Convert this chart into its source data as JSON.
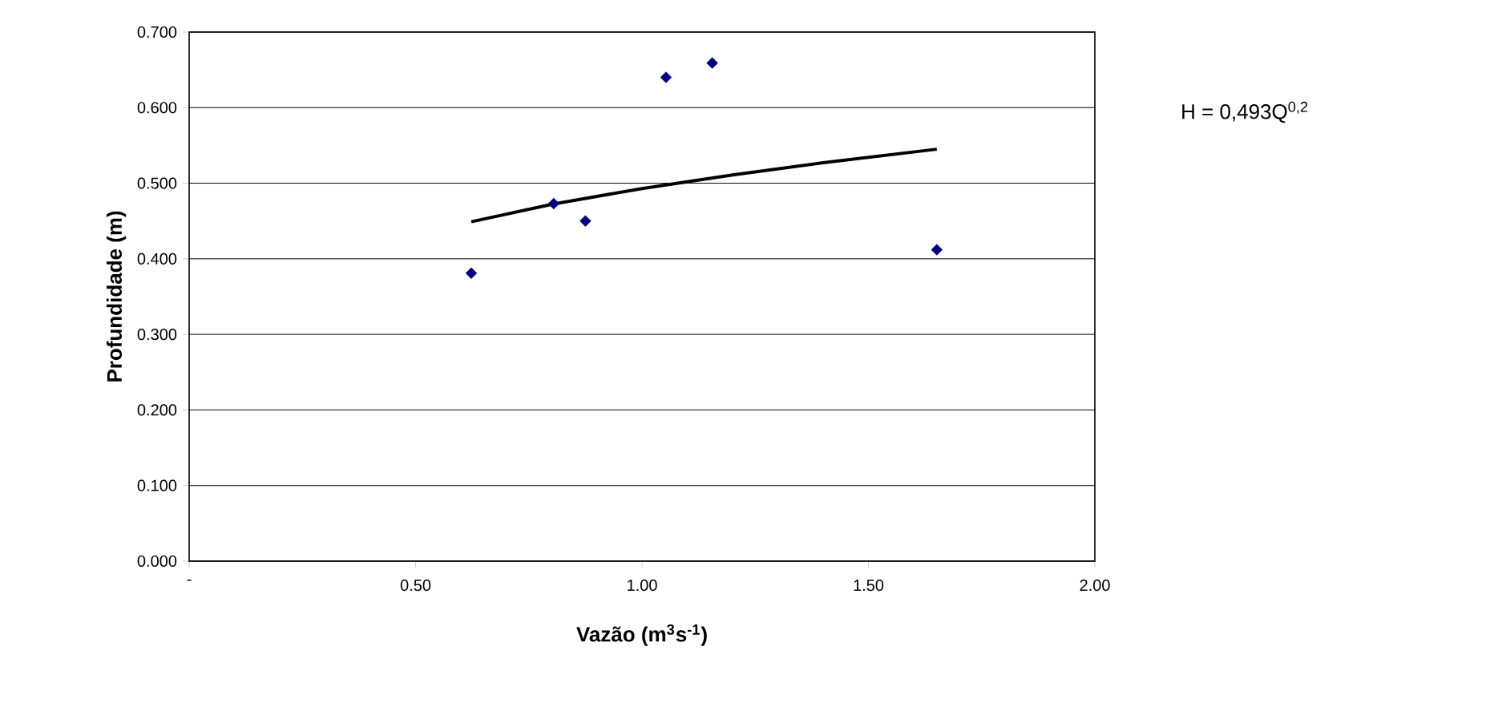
{
  "chart_data": {
    "type": "scatter",
    "xlabel": "Vazão (m$^{3}$s$^{-1}$)",
    "ylabel": "Profundidade (m)",
    "series": [
      {
        "color": "#000080",
        "marker": "diamond",
        "x": [
          0.623,
          0.805,
          0.875,
          1.053,
          1.155,
          1.651
        ],
        "values": [
          0.381,
          0.473,
          0.45,
          0.64,
          0.659,
          0.412
        ]
      },
      {
        "type": "line",
        "color": "#000000",
        "marker": "none",
        "line_style": "solid",
        "x": [
          0.623,
          0.8,
          1.0,
          1.2,
          1.4,
          1.651
        ],
        "values": [
          0.449,
          0.472,
          0.493,
          0.511,
          0.527,
          0.545
        ]
      }
    ],
    "xlim": [
      0,
      2
    ],
    "xticks": [
      {
        "value": 0,
        "label": "-"
      },
      {
        "value": 0.5,
        "label": "0.50"
      },
      {
        "value": 1,
        "label": "1.00"
      },
      {
        "value": 1.5,
        "label": "1.50"
      },
      {
        "value": 2,
        "label": "2.00"
      }
    ],
    "ylim": [
      0,
      0.7
    ],
    "yticks": [
      {
        "value": 0,
        "label": "0.000"
      },
      {
        "value": 0.1,
        "label": "0.100"
      },
      {
        "value": 0.2,
        "label": "0.200"
      },
      {
        "value": 0.3,
        "label": "0.300"
      },
      {
        "value": 0.4,
        "label": "0.400"
      },
      {
        "value": 0.5,
        "label": "0.500"
      },
      {
        "value": 0.6,
        "label": "0.600"
      },
      {
        "value": 0.7,
        "label": "0.700"
      }
    ],
    "grid": "y",
    "annotations": [
      "H = 0,493Q$^{0,2}$"
    ]
  }
}
